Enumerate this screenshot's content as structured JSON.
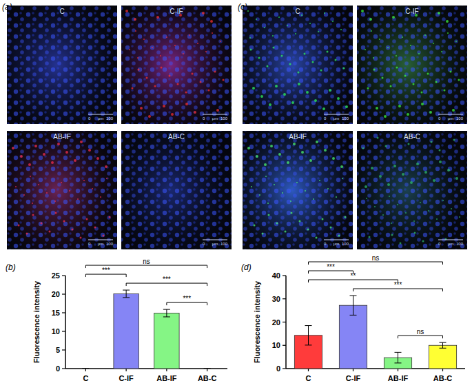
{
  "image_panels": [
    {
      "label": "(a)",
      "images": [
        "C",
        "C-IF",
        "AB-IF",
        "AB-C"
      ]
    },
    {
      "label": "(c)",
      "images": [
        "C",
        "C-IF",
        "AB-IF",
        "AB-C"
      ]
    }
  ],
  "scale_bar": [
    "0",
    "μm",
    "100"
  ],
  "chart_data": [
    {
      "type": "bar",
      "title": "(b)",
      "y_label": "Fluorescence intensity",
      "categories": [
        "C",
        "C-IF",
        "AB-IF",
        "AB-C"
      ],
      "values": [
        0,
        20.1,
        14.9,
        0
      ],
      "errors": [
        0,
        1.0,
        1.0,
        0
      ],
      "colors": [
        "#ff3b3b",
        "#8585f5",
        "#85f585",
        "#ffff33"
      ],
      "ylim": [
        0,
        25
      ],
      "yticks": [
        0,
        5,
        10,
        15,
        20,
        25
      ],
      "annotations": [
        {
          "text": "ns",
          "between": [
            "C",
            "AB-C"
          ]
        },
        {
          "text": "***",
          "between": [
            "C",
            "C-IF"
          ]
        },
        {
          "text": "***",
          "between": [
            "C-IF",
            "AB-C"
          ]
        },
        {
          "text": "***",
          "between": [
            "AB-IF",
            "AB-C"
          ]
        }
      ]
    },
    {
      "type": "bar",
      "title": "(d)",
      "y_label": "Fluorescence intensity",
      "categories": [
        "C",
        "C-IF",
        "AB-IF",
        "AB-C"
      ],
      "values": [
        14.3,
        27.2,
        4.7,
        10.0
      ],
      "errors": [
        4.2,
        4.2,
        2.3,
        1.2
      ],
      "colors": [
        "#ff3b3b",
        "#8585f5",
        "#85f585",
        "#ffff33"
      ],
      "ylim": [
        0,
        40
      ],
      "yticks": [
        0,
        10,
        20,
        30,
        40
      ],
      "annotations": [
        {
          "text": "ns",
          "between": [
            "C",
            "AB-C"
          ]
        },
        {
          "text": "***",
          "between": [
            "C",
            "C-IF"
          ]
        },
        {
          "text": "**",
          "between": [
            "C",
            "AB-IF"
          ]
        },
        {
          "text": "***",
          "between": [
            "C-IF",
            "AB-C"
          ]
        },
        {
          "text": "ns",
          "between": [
            "AB-IF",
            "AB-C"
          ]
        }
      ]
    }
  ]
}
